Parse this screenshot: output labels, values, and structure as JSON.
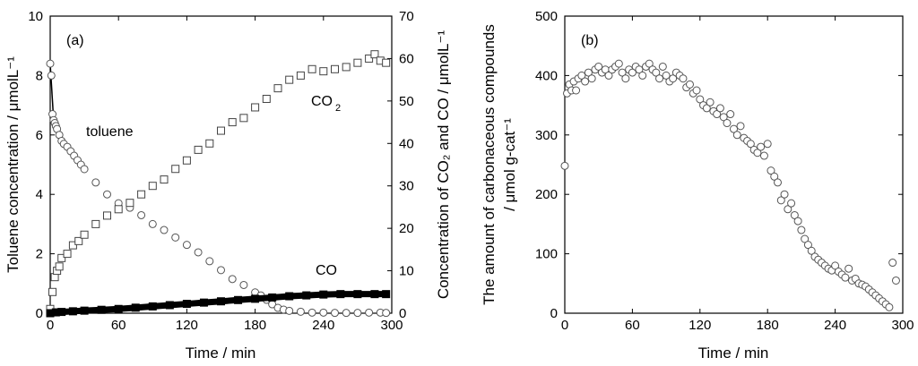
{
  "chart_data": [
    {
      "panel_label": "(a)",
      "type": "scatter",
      "xlabel": "Time / min",
      "xlim": [
        0,
        300
      ],
      "x_ticks": [
        "0",
        "60",
        "120",
        "180",
        "240",
        "300"
      ],
      "ylabel_left": "Toluene concentration / μmolL⁻¹",
      "ylim_left": [
        0,
        10
      ],
      "y_ticks_left": [
        "0",
        "2",
        "4",
        "6",
        "8",
        "10"
      ],
      "ylabel_right": "Concentration of CO₂ and CO / μmolL⁻¹",
      "ylim_right": [
        0,
        70
      ],
      "y_ticks_right": [
        "0",
        "10",
        "20",
        "30",
        "40",
        "50",
        "60",
        "70"
      ],
      "annotations": {
        "toluene": "toluene",
        "co2": "CO",
        "co2_sub": "2",
        "co": "CO"
      },
      "series": [
        {
          "name": "toluene",
          "axis": "left",
          "marker": "circle-open",
          "x": [
            0,
            1,
            2,
            3,
            4,
            5,
            6,
            8,
            10,
            12,
            15,
            18,
            21,
            24,
            27,
            30,
            40,
            50,
            60,
            70,
            80,
            90,
            100,
            110,
            120,
            130,
            140,
            150,
            160,
            170,
            180,
            185,
            190,
            195,
            200,
            205,
            210,
            220,
            230,
            240,
            250,
            260,
            270,
            280,
            290,
            295
          ],
          "y": [
            8.4,
            8.0,
            6.7,
            6.5,
            6.4,
            6.3,
            6.2,
            6.0,
            5.8,
            5.7,
            5.6,
            5.45,
            5.3,
            5.15,
            5.0,
            4.85,
            4.4,
            4.0,
            3.7,
            3.55,
            3.3,
            3.0,
            2.8,
            2.55,
            2.3,
            2.05,
            1.75,
            1.45,
            1.15,
            0.95,
            0.7,
            0.6,
            0.45,
            0.3,
            0.18,
            0.12,
            0.08,
            0.05,
            0.02,
            0.02,
            0.01,
            0.01,
            0.01,
            0.02,
            0.02,
            0.01
          ]
        },
        {
          "name": "CO2",
          "axis": "right",
          "marker": "square-open",
          "x": [
            0,
            2,
            4,
            6,
            8,
            10,
            15,
            20,
            25,
            30,
            40,
            50,
            60,
            70,
            80,
            90,
            100,
            110,
            120,
            130,
            140,
            150,
            160,
            170,
            180,
            190,
            200,
            210,
            220,
            230,
            240,
            250,
            260,
            270,
            280,
            285,
            290,
            295
          ],
          "y": [
            1.0,
            5.0,
            8.5,
            10.0,
            11.0,
            13.0,
            14.0,
            16.0,
            17.0,
            18.5,
            21.0,
            23.0,
            24.5,
            26.0,
            28.0,
            30.0,
            31.5,
            34.0,
            36.0,
            38.5,
            40.0,
            43.0,
            45.0,
            46.0,
            48.5,
            50.5,
            53.0,
            55.0,
            56.0,
            57.5,
            57.0,
            57.5,
            58.0,
            59.0,
            60.0,
            61.0,
            59.5,
            59.0
          ]
        },
        {
          "name": "CO",
          "axis": "right",
          "marker": "square-filled",
          "x": [
            0,
            5,
            10,
            20,
            30,
            45,
            60,
            75,
            90,
            105,
            120,
            135,
            150,
            165,
            180,
            195,
            210,
            225,
            240,
            255,
            270,
            285,
            295
          ],
          "y": [
            0.0,
            0.2,
            0.3,
            0.45,
            0.6,
            0.8,
            1.0,
            1.3,
            1.6,
            1.9,
            2.2,
            2.5,
            2.8,
            3.1,
            3.4,
            3.7,
            4.0,
            4.2,
            4.4,
            4.5,
            4.5,
            4.5,
            4.5
          ]
        }
      ]
    },
    {
      "panel_label": "(b)",
      "type": "scatter",
      "xlabel": "Time / min",
      "xlim": [
        0,
        300
      ],
      "x_ticks": [
        "0",
        "60",
        "120",
        "180",
        "240",
        "300"
      ],
      "ylabel": "The amount of carbonaceous compounds",
      "ylabel2": "/ μmol g-cat⁻¹",
      "ylim": [
        0,
        500
      ],
      "y_ticks": [
        "0",
        "100",
        "200",
        "300",
        "400",
        "500"
      ],
      "series": [
        {
          "name": "carbonaceous compounds",
          "marker": "circle-open",
          "x": [
            0,
            2,
            4,
            6,
            8,
            10,
            12,
            15,
            18,
            21,
            24,
            27,
            30,
            33,
            36,
            39,
            42,
            45,
            48,
            51,
            54,
            57,
            60,
            63,
            66,
            69,
            72,
            75,
            78,
            81,
            84,
            87,
            90,
            93,
            96,
            99,
            102,
            105,
            108,
            111,
            114,
            117,
            120,
            123,
            126,
            129,
            132,
            135,
            138,
            141,
            144,
            147,
            150,
            153,
            156,
            159,
            162,
            165,
            168,
            171,
            174,
            177,
            180,
            183,
            186,
            189,
            192,
            195,
            198,
            201,
            204,
            207,
            210,
            213,
            216,
            219,
            222,
            225,
            228,
            231,
            234,
            237,
            240,
            243,
            246,
            249,
            252,
            255,
            258,
            261,
            264,
            267,
            270,
            273,
            276,
            279,
            282,
            285,
            288,
            291,
            294
          ],
          "y": [
            248,
            370,
            385,
            375,
            390,
            375,
            395,
            400,
            390,
            405,
            395,
            410,
            415,
            405,
            410,
            400,
            410,
            415,
            420,
            405,
            395,
            410,
            405,
            415,
            410,
            400,
            415,
            420,
            410,
            405,
            395,
            415,
            400,
            390,
            395,
            405,
            400,
            395,
            380,
            385,
            370,
            375,
            360,
            350,
            345,
            355,
            340,
            335,
            345,
            330,
            320,
            335,
            310,
            300,
            315,
            295,
            290,
            285,
            275,
            270,
            280,
            265,
            285,
            240,
            230,
            220,
            190,
            200,
            175,
            185,
            165,
            155,
            140,
            125,
            115,
            105,
            95,
            90,
            85,
            80,
            75,
            72,
            80,
            70,
            65,
            60,
            75,
            55,
            58,
            50,
            48,
            45,
            40,
            35,
            30,
            25,
            20,
            15,
            10,
            85,
            55
          ]
        }
      ]
    }
  ]
}
